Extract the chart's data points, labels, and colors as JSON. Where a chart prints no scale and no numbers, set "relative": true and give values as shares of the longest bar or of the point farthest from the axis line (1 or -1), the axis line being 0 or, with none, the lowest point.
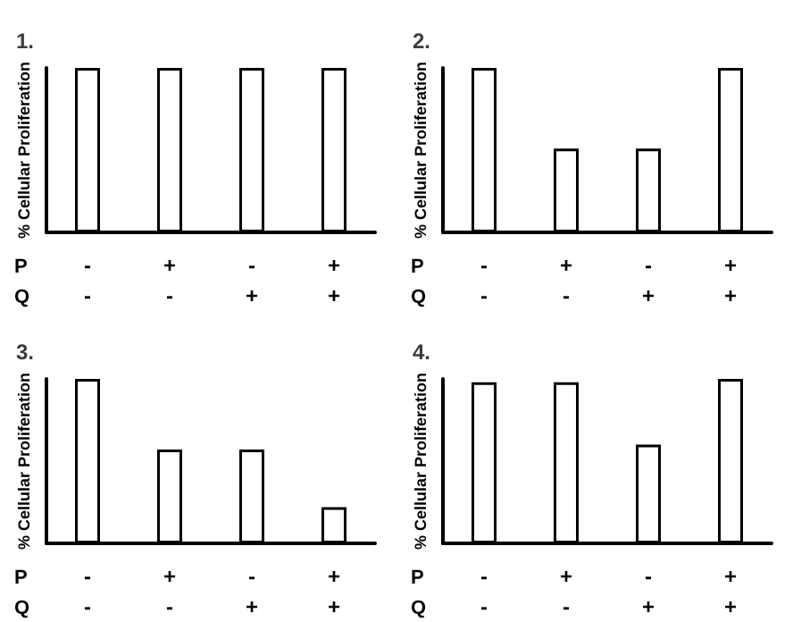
{
  "chart_data": [
    {
      "type": "bar",
      "title": "1.",
      "ylabel": "% Cellular Proliferation",
      "relative": true,
      "categories": [
        "-\n-",
        "+\n-",
        "-\n+",
        "+\n+"
      ],
      "values": [
        1,
        1,
        1,
        1
      ],
      "color": "#ffffff",
      "annotations": [
        "P",
        "Q"
      ]
    },
    {
      "type": "bar",
      "title": "2.",
      "ylabel": "% Cellular Proliferation",
      "relative": true,
      "categories": [
        "-\n-",
        "+\n-",
        "-\n+",
        "+\n+"
      ],
      "values": [
        1,
        0.51,
        0.51,
        1
      ],
      "color": "#ffffff",
      "annotations": [
        "P",
        "Q"
      ]
    },
    {
      "type": "bar",
      "title": "3.",
      "ylabel": "% Cellular Proliferation",
      "relative": true,
      "categories": [
        "-\n-",
        "+\n-",
        "-\n+",
        "+\n+"
      ],
      "values": [
        1,
        0.57,
        0.57,
        0.22
      ],
      "color": "#ffffff",
      "annotations": [
        "P",
        "Q"
      ]
    },
    {
      "type": "bar",
      "title": "4.",
      "ylabel": "% Cellular Proliferation",
      "relative": true,
      "categories": [
        "-\n-",
        "+\n-",
        "-\n+",
        "+\n+"
      ],
      "values": [
        0.98,
        0.98,
        0.6,
        1
      ],
      "color": "#ffffff",
      "annotations": [
        "P",
        "Q"
      ]
    }
  ]
}
